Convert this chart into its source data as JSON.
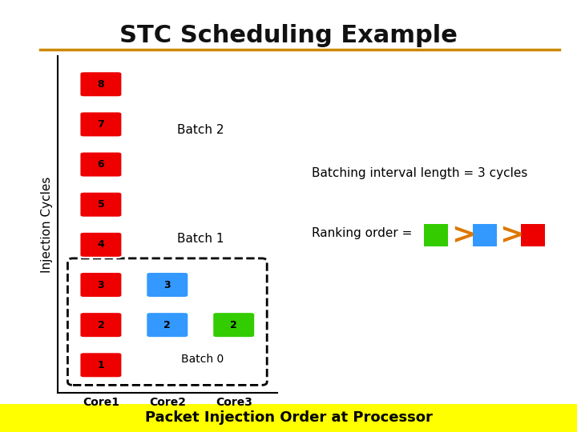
{
  "title": "STC Scheduling Example",
  "title_color": "#111111",
  "title_fontsize": 22,
  "underline_color": "#CC8800",
  "ylabel": "Injection Cycles",
  "xlabel_labels": [
    "Core1",
    "Core2",
    "Core3"
  ],
  "bottom_label": "Packet Injection Order at Processor",
  "bottom_bg": "#FFFF00",
  "batching_text": "Batching interval length = 3 cycles",
  "ranking_text": "Ranking order =",
  "bg_color": "#FFFFFF",
  "red_color": "#EE0000",
  "blue_color": "#3399FF",
  "green_color": "#33CC00",
  "orange_color": "#DD7700",
  "red_boxes": [
    {
      "col": 0,
      "row": 1,
      "label": "1"
    },
    {
      "col": 0,
      "row": 2,
      "label": "2"
    },
    {
      "col": 0,
      "row": 3,
      "label": "3"
    },
    {
      "col": 0,
      "row": 4,
      "label": "4"
    },
    {
      "col": 0,
      "row": 5,
      "label": "5"
    },
    {
      "col": 0,
      "row": 6,
      "label": "6"
    },
    {
      "col": 0,
      "row": 7,
      "label": "7"
    },
    {
      "col": 0,
      "row": 8,
      "label": "8"
    }
  ],
  "blue_boxes": [
    {
      "col": 1,
      "row": 2,
      "label": "2"
    },
    {
      "col": 1,
      "row": 3,
      "label": "3"
    }
  ],
  "green_boxes": [
    {
      "col": 2,
      "row": 2,
      "label": "2"
    }
  ],
  "batch2_label": "Batch 2",
  "batch1_label": "Batch 1",
  "batch0_label": "Batch 0"
}
